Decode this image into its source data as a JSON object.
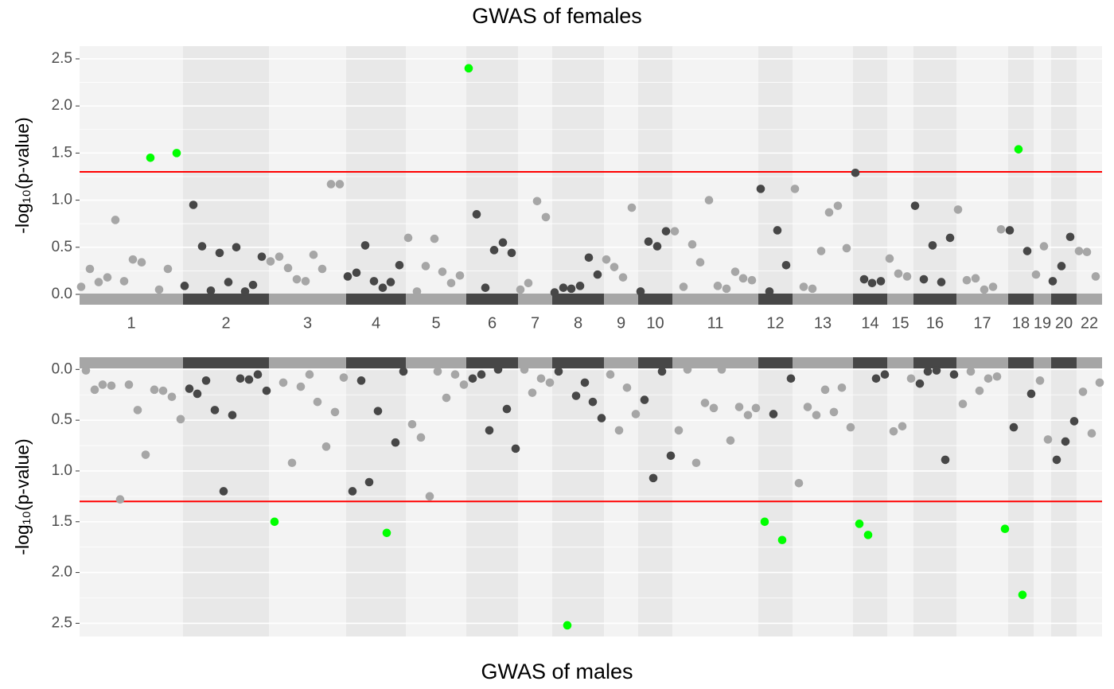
{
  "chart_data": [
    {
      "type": "scatter",
      "title": "GWAS of females",
      "ylabel": "-log₁₀(p-value)",
      "categories": [
        "1",
        "2",
        "3",
        "4",
        "5",
        "6",
        "7",
        "8",
        "9",
        "10",
        "11",
        "12",
        "13",
        "14",
        "15",
        "16",
        "17",
        "18",
        "19",
        "20",
        "22"
      ],
      "category_bounds": [
        0,
        130,
        238,
        335,
        410,
        486,
        551,
        594,
        659,
        702,
        745,
        853,
        896,
        972,
        1015,
        1048,
        1102,
        1167,
        1199,
        1221,
        1253,
        1285
      ],
      "category_colors": [
        "#a6a6a6",
        "#474747"
      ],
      "xlim": [
        0,
        1285
      ],
      "ylim": [
        -0.11,
        2.635
      ],
      "yticks": [
        {
          "value": 0,
          "label": "0.0"
        },
        0.5,
        {
          "value": 1,
          "label": "1.0"
        },
        1.5,
        {
          "value": 2,
          "label": "2.0"
        },
        2.5
      ],
      "threshold": 1.3,
      "threshold_color": "#ff0000",
      "highlight_color": "#00ff00",
      "grid": true,
      "x": [
        2,
        13,
        24,
        35,
        45,
        56,
        67,
        78,
        89,
        100,
        111,
        122,
        132,
        143,
        154,
        165,
        176,
        187,
        197,
        208,
        218,
        229,
        240,
        251,
        262,
        273,
        284,
        294,
        305,
        316,
        327,
        337,
        348,
        359,
        370,
        381,
        391,
        402,
        413,
        424,
        435,
        446,
        456,
        467,
        478,
        489,
        499,
        510,
        521,
        532,
        543,
        554,
        564,
        575,
        586,
        597,
        608,
        618,
        629,
        640,
        651,
        662,
        672,
        683,
        694,
        705,
        715,
        726,
        737,
        748,
        759,
        770,
        780,
        791,
        802,
        813,
        824,
        834,
        845,
        856,
        867,
        877,
        888,
        899,
        910,
        921,
        932,
        942,
        953,
        964,
        975,
        986,
        996,
        1007,
        1018,
        1029,
        1040,
        1050,
        1061,
        1072,
        1083,
        1094,
        1104,
        1115,
        1126,
        1137,
        1148,
        1158,
        1169,
        1180,
        1191,
        1202,
        1212,
        1223,
        1234,
        1245,
        1256,
        1266,
        1277
      ],
      "values": [
        0.08,
        0.27,
        0.13,
        0.18,
        0.79,
        0.14,
        0.37,
        0.34,
        1.45,
        0.05,
        0.27,
        1.5,
        0.09,
        0.95,
        0.51,
        0.04,
        0.44,
        0.13,
        0.5,
        0.03,
        0.1,
        0.4,
        0.35,
        0.4,
        0.28,
        0.16,
        0.14,
        0.42,
        0.27,
        1.17,
        1.17,
        0.19,
        0.23,
        0.52,
        0.14,
        0.07,
        0.13,
        0.31,
        0.6,
        0.03,
        0.3,
        0.59,
        0.24,
        0.12,
        0.2,
        2.4,
        0.85,
        0.07,
        0.47,
        0.55,
        0.44,
        0.05,
        0.12,
        0.99,
        0.82,
        0.02,
        0.07,
        0.06,
        0.09,
        0.39,
        0.21,
        0.37,
        0.29,
        0.18,
        0.92,
        0.03,
        0.56,
        0.51,
        0.67,
        0.67,
        0.08,
        0.53,
        0.34,
        1.0,
        0.09,
        0.06,
        0.24,
        0.17,
        0.15,
        1.12,
        0.03,
        0.68,
        0.31,
        1.12,
        0.08,
        0.06,
        0.46,
        0.87,
        0.94,
        0.49,
        1.29,
        0.16,
        0.12,
        0.14,
        0.38,
        0.22,
        0.19,
        0.94,
        0.16,
        0.52,
        0.13,
        0.6,
        0.9,
        0.15,
        0.17,
        0.05,
        0.08,
        0.69,
        0.68,
        1.54,
        0.46,
        0.21,
        0.51,
        0.14,
        0.3,
        0.61,
        0.46,
        0.45,
        0.19
      ]
    },
    {
      "type": "scatter",
      "title": "GWAS of males",
      "ylabel": "-log₁₀(p-value)",
      "reverse": true,
      "xlim": [
        0,
        1285
      ],
      "ylim": [
        -0.12,
        2.63
      ],
      "yticks": [
        {
          "value": 0,
          "label": "0.0"
        },
        0.5,
        {
          "value": 1,
          "label": "1.0"
        },
        1.5,
        {
          "value": 2,
          "label": "2.0"
        },
        2.5
      ],
      "threshold": 1.3,
      "threshold_color": "#ff0000",
      "highlight_color": "#00ff00",
      "grid": true,
      "x": [
        8,
        19,
        29,
        40,
        51,
        62,
        73,
        83,
        94,
        105,
        116,
        127,
        138,
        148,
        159,
        170,
        181,
        192,
        202,
        213,
        224,
        235,
        245,
        256,
        267,
        278,
        289,
        299,
        310,
        321,
        332,
        343,
        354,
        364,
        375,
        386,
        397,
        407,
        418,
        429,
        440,
        450,
        461,
        472,
        483,
        494,
        505,
        515,
        526,
        537,
        548,
        559,
        569,
        580,
        591,
        602,
        613,
        624,
        635,
        645,
        656,
        667,
        678,
        688,
        699,
        710,
        721,
        732,
        743,
        753,
        764,
        775,
        786,
        797,
        807,
        818,
        829,
        840,
        850,
        861,
        872,
        883,
        894,
        904,
        915,
        926,
        937,
        948,
        958,
        969,
        980,
        991,
        1001,
        1012,
        1023,
        1034,
        1045,
        1056,
        1066,
        1077,
        1088,
        1099,
        1110,
        1120,
        1131,
        1142,
        1153,
        1163,
        1174,
        1185,
        1196,
        1207,
        1217,
        1228,
        1239,
        1250,
        1261,
        1272,
        1282
      ],
      "values": [
        0.01,
        0.2,
        0.15,
        0.16,
        1.28,
        0.15,
        0.4,
        0.84,
        0.2,
        0.21,
        0.27,
        0.49,
        0.19,
        0.24,
        0.11,
        0.4,
        1.2,
        0.45,
        0.09,
        0.1,
        0.05,
        0.21,
        1.5,
        0.13,
        0.92,
        0.17,
        0.05,
        0.32,
        0.76,
        0.42,
        0.08,
        1.2,
        0.11,
        1.11,
        0.41,
        1.61,
        0.72,
        0.02,
        0.54,
        0.67,
        1.25,
        0.02,
        0.28,
        0.05,
        0.15,
        0.09,
        0.05,
        0.6,
        0.0,
        0.39,
        0.78,
        0.0,
        0.23,
        0.09,
        0.13,
        0.02,
        2.52,
        0.26,
        0.13,
        0.32,
        0.48,
        0.05,
        0.6,
        0.18,
        0.44,
        0.3,
        1.07,
        0.02,
        0.85,
        0.6,
        0.0,
        0.92,
        0.33,
        0.38,
        0.0,
        0.7,
        0.37,
        0.45,
        0.38,
        1.5,
        0.44,
        1.68,
        0.09,
        1.12,
        0.37,
        0.45,
        0.2,
        0.42,
        0.18,
        0.57,
        1.52,
        1.63,
        0.09,
        0.05,
        0.61,
        0.56,
        0.09,
        0.14,
        0.02,
        0.01,
        0.89,
        0.05,
        0.34,
        0.02,
        0.21,
        0.09,
        0.07,
        1.57,
        0.57,
        2.22,
        0.24,
        0.11,
        0.69,
        0.89,
        0.71,
        0.51,
        0.22,
        0.63,
        0.13
      ]
    }
  ]
}
